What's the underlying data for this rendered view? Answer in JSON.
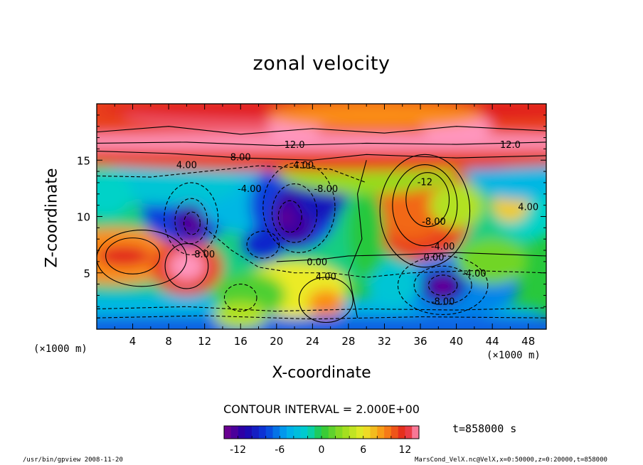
{
  "chart_data": {
    "type": "heatmap",
    "title": "zonal velocity",
    "xlabel": "X-coordinate",
    "ylabel": "Z-coordinate",
    "x_unit": "(×1000 m)",
    "y_unit": "(×1000 m)",
    "xlim": [
      0,
      50
    ],
    "ylim": [
      0,
      20
    ],
    "x_ticks": [
      4,
      8,
      12,
      16,
      20,
      24,
      28,
      32,
      36,
      40,
      44,
      48
    ],
    "y_ticks": [
      5,
      10,
      15
    ],
    "colorbar": {
      "min": -14,
      "max": 14,
      "ticks": [
        -12,
        -6,
        0,
        6,
        12
      ]
    },
    "contour_interval_text": "CONTOUR INTERVAL = 2.000E+00",
    "time_text": "t=858000 s",
    "contour_labels": [
      {
        "text": "12.0",
        "x": 22,
        "y": 16.3
      },
      {
        "text": "12.0",
        "x": 46,
        "y": 16.3
      },
      {
        "text": "8.00",
        "x": 16,
        "y": 15.2
      },
      {
        "text": "4.00",
        "x": 10,
        "y": 14.5
      },
      {
        "text": "4.00",
        "x": 23,
        "y": 14.5
      },
      {
        "text": "-4.00",
        "x": 17,
        "y": 12.4
      },
      {
        "text": "-8.00",
        "x": 25.5,
        "y": 12.4
      },
      {
        "text": "-12",
        "x": 36.5,
        "y": 13.0
      },
      {
        "text": "4.00",
        "x": 48,
        "y": 10.8
      },
      {
        "text": "-8.00",
        "x": 37.5,
        "y": 9.5
      },
      {
        "text": "-4.00",
        "x": 38.5,
        "y": 7.3
      },
      {
        "text": "0.00",
        "x": 37.5,
        "y": 6.3
      },
      {
        "text": "0.00",
        "x": 24.5,
        "y": 5.9
      },
      {
        "text": "-4.00",
        "x": 42,
        "y": 4.9
      },
      {
        "text": "4.00",
        "x": 25.5,
        "y": 4.6
      },
      {
        "text": "-8.00",
        "x": 38.5,
        "y": 2.4
      },
      {
        "text": "8.00",
        "x": 12,
        "y": 6.6
      }
    ]
  },
  "footer": {
    "left": "/usr/bin/gpview  2008-11-20",
    "right": "MarsCond_VelX.nc@VelX,x=0:50000,z=0:20000,t=858000"
  }
}
